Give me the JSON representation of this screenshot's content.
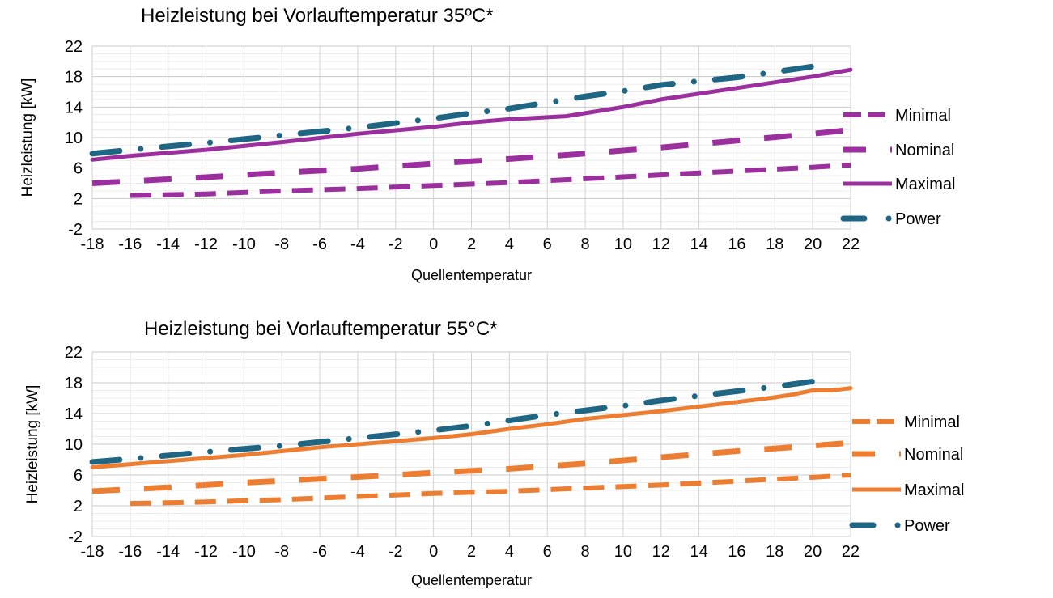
{
  "chart_data": [
    {
      "type": "line",
      "title": "Heizleistung bei Vorlauftemperatur 35ºC*",
      "xlabel": "Quellentemperatur",
      "ylabel": "Heizleistung [kW]",
      "xlim": [
        -18,
        22
      ],
      "ylim": [
        -2,
        22
      ],
      "x_ticks": [
        "-18",
        "-16",
        "-14",
        "-12",
        "-10",
        "-8",
        "-6",
        "-4",
        "-2",
        "0",
        "2",
        "4",
        "6",
        "8",
        "10",
        "12",
        "14",
        "16",
        "18",
        "20",
        "22"
      ],
      "y_ticks": [
        "-2",
        "2",
        "6",
        "10",
        "14",
        "18",
        "22"
      ],
      "grid": true,
      "legend_position": "right",
      "series": [
        {
          "name": "Minimal",
          "color": "#9b2f9e",
          "style": "dashed",
          "points": [
            [
              -16,
              2.4
            ],
            [
              -12,
              2.6
            ],
            [
              -8,
              3.0
            ],
            [
              -4,
              3.3
            ],
            [
              0,
              3.7
            ],
            [
              4,
              4.1
            ],
            [
              8,
              4.6
            ],
            [
              12,
              5.1
            ],
            [
              16,
              5.6
            ],
            [
              20,
              6.1
            ],
            [
              22,
              6.4
            ]
          ]
        },
        {
          "name": "Nominal",
          "color": "#9b2f9e",
          "style": "longdash",
          "points": [
            [
              -18,
              4.0
            ],
            [
              -12,
              4.8
            ],
            [
              -8,
              5.4
            ],
            [
              -4,
              5.9
            ],
            [
              0,
              6.6
            ],
            [
              4,
              7.2
            ],
            [
              8,
              7.9
            ],
            [
              12,
              8.7
            ],
            [
              16,
              9.6
            ],
            [
              20,
              10.5
            ],
            [
              22,
              11.0
            ]
          ]
        },
        {
          "name": "Maximal",
          "color": "#9b2f9e",
          "style": "solid",
          "points": [
            [
              -18,
              7.1
            ],
            [
              -16,
              7.6
            ],
            [
              -12,
              8.4
            ],
            [
              -8,
              9.4
            ],
            [
              -4,
              10.5
            ],
            [
              0,
              11.4
            ],
            [
              2,
              12.0
            ],
            [
              4,
              12.4
            ],
            [
              7,
              12.8
            ],
            [
              10,
              14.0
            ],
            [
              12,
              15.0
            ],
            [
              16,
              16.5
            ],
            [
              20,
              18.0
            ],
            [
              22,
              18.9
            ]
          ]
        },
        {
          "name": "Power",
          "color": "#1e6683",
          "style": "dashdot",
          "points": [
            [
              -18,
              7.9
            ],
            [
              -15.5,
              8.5
            ],
            [
              -12,
              9.3
            ],
            [
              -8,
              10.3
            ],
            [
              -4,
              11.3
            ],
            [
              0,
              12.5
            ],
            [
              2,
              13.2
            ],
            [
              4,
              13.8
            ],
            [
              6,
              14.6
            ],
            [
              8,
              15.4
            ],
            [
              10,
              16.1
            ],
            [
              12,
              16.9
            ],
            [
              16,
              17.9
            ],
            [
              18,
              18.6
            ],
            [
              21,
              19.7
            ]
          ]
        }
      ]
    },
    {
      "type": "line",
      "title": "Heizleistung bei Vorlauftemperatur 55°C*",
      "xlabel": "Quellentemperatur",
      "ylabel": "Heizleistung [kW]",
      "xlim": [
        -18,
        22
      ],
      "ylim": [
        -2,
        22
      ],
      "x_ticks": [
        "-18",
        "-16",
        "-14",
        "-12",
        "-10",
        "-8",
        "-6",
        "-4",
        "-2",
        "0",
        "2",
        "4",
        "6",
        "8",
        "10",
        "12",
        "14",
        "16",
        "18",
        "20",
        "22"
      ],
      "y_ticks": [
        "-2",
        "2",
        "6",
        "10",
        "14",
        "18",
        "22"
      ],
      "grid": true,
      "legend_position": "right",
      "series": [
        {
          "name": "Minimal",
          "color": "#ed7d31",
          "style": "dashed",
          "points": [
            [
              -16,
              2.3
            ],
            [
              -12,
              2.5
            ],
            [
              -8,
              2.8
            ],
            [
              -4,
              3.2
            ],
            [
              0,
              3.6
            ],
            [
              4,
              3.9
            ],
            [
              8,
              4.3
            ],
            [
              12,
              4.7
            ],
            [
              16,
              5.2
            ],
            [
              20,
              5.7
            ],
            [
              22,
              6.0
            ]
          ]
        },
        {
          "name": "Nominal",
          "color": "#ed7d31",
          "style": "longdash",
          "points": [
            [
              -18,
              3.9
            ],
            [
              -14,
              4.4
            ],
            [
              -10,
              5.0
            ],
            [
              -6,
              5.5
            ],
            [
              -2,
              6.0
            ],
            [
              0,
              6.3
            ],
            [
              4,
              6.8
            ],
            [
              8,
              7.5
            ],
            [
              12,
              8.3
            ],
            [
              16,
              9.1
            ],
            [
              20,
              9.8
            ],
            [
              22,
              10.2
            ]
          ]
        },
        {
          "name": "Maximal",
          "color": "#ed7d31",
          "style": "solid",
          "points": [
            [
              -18,
              7.0
            ],
            [
              -14,
              7.8
            ],
            [
              -10,
              8.6
            ],
            [
              -6,
              9.6
            ],
            [
              -2,
              10.4
            ],
            [
              0,
              10.8
            ],
            [
              2,
              11.3
            ],
            [
              4,
              12.0
            ],
            [
              6,
              12.6
            ],
            [
              8,
              13.3
            ],
            [
              10,
              13.8
            ],
            [
              12,
              14.3
            ],
            [
              16,
              15.5
            ],
            [
              18,
              16.1
            ],
            [
              19,
              16.5
            ],
            [
              20,
              17.0
            ],
            [
              21,
              17.0
            ],
            [
              22,
              17.3
            ]
          ]
        },
        {
          "name": "Power",
          "color": "#1e6683",
          "style": "dashdot",
          "points": [
            [
              -18,
              7.7
            ],
            [
              -15.5,
              8.2
            ],
            [
              -12,
              9.0
            ],
            [
              -8,
              9.8
            ],
            [
              -4,
              10.8
            ],
            [
              0,
              11.8
            ],
            [
              2,
              12.4
            ],
            [
              4,
              13.1
            ],
            [
              6,
              13.8
            ],
            [
              8,
              14.4
            ],
            [
              10,
              15.0
            ],
            [
              12,
              15.7
            ],
            [
              14,
              16.3
            ],
            [
              18,
              17.5
            ],
            [
              21,
              18.5
            ]
          ]
        }
      ]
    }
  ]
}
